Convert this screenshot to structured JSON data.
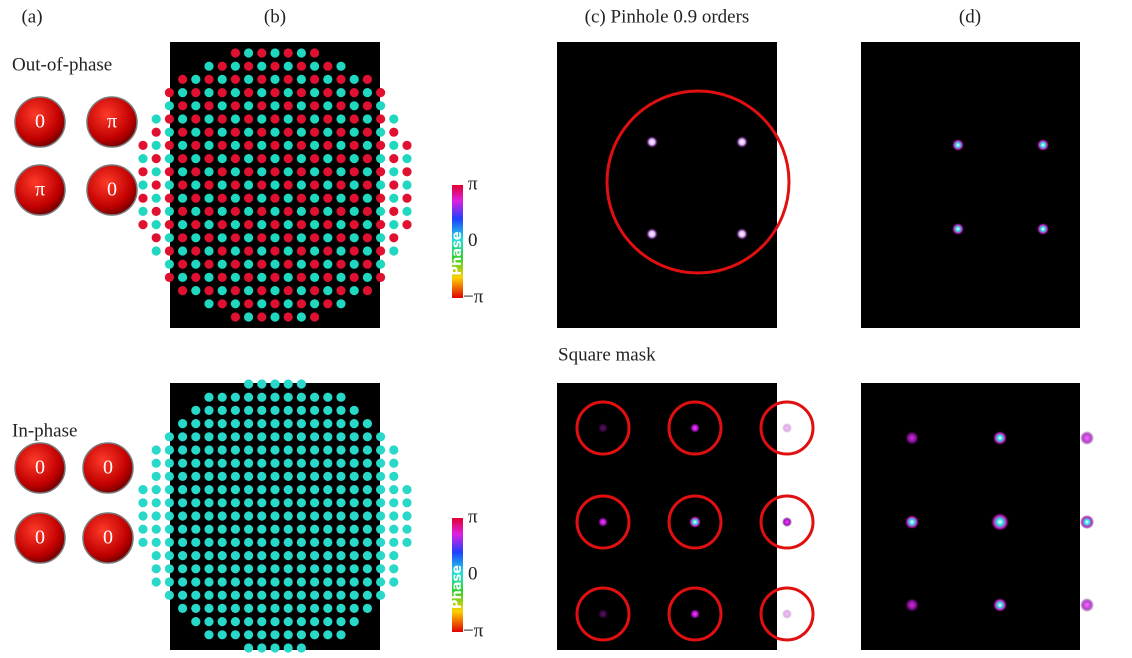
{
  "panel_labels": {
    "a": "(a)",
    "b": "(b)",
    "c": "(c) Pinhole 0.9 orders",
    "d": "(d)"
  },
  "rows": [
    {
      "label": "Out-of-phase",
      "phases": [
        "0",
        "π",
        "π",
        "0"
      ],
      "colorbar": {
        "max": "π",
        "title": "Phase",
        "mid": "0",
        "min": "−π"
      }
    },
    {
      "label": "In-phase",
      "phases": [
        "0",
        "0",
        "0",
        "0"
      ],
      "colorbar": {
        "max": "π",
        "title": "Phase",
        "mid": "0",
        "min": "−π"
      }
    }
  ],
  "square_mask_label": "Square mask"
}
